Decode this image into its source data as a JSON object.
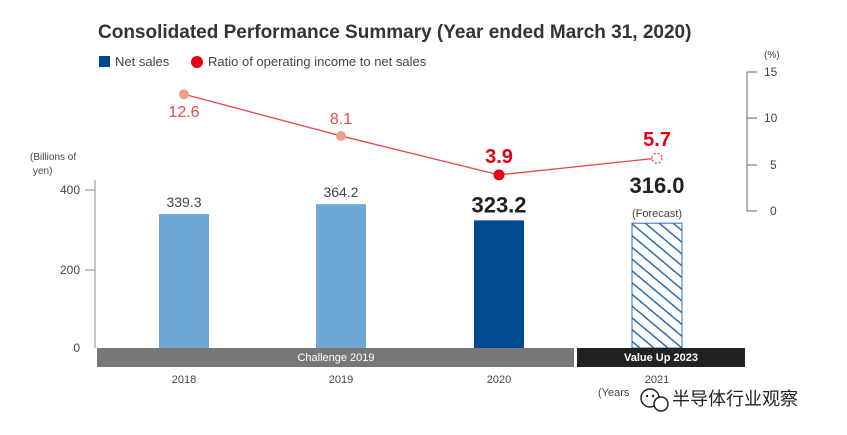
{
  "chart_data": {
    "type": "bar",
    "title": "Consolidated Performance Summary (Year ended March 31, 2020)",
    "legend": {
      "net_sales": "Net sales",
      "ratio": "Ratio of operating income to net sales"
    },
    "left_axis": {
      "unit_line1": "(Billions of",
      "unit_line2": "yen)",
      "ticks": [
        "400",
        "200",
        "0"
      ],
      "ylim": [
        0,
        400
      ]
    },
    "right_axis": {
      "unit": "(%)",
      "ticks": [
        "15",
        "10",
        "5",
        "0"
      ],
      "ylim": [
        0,
        15
      ]
    },
    "categories": [
      "2018",
      "2019",
      "2020",
      "2021"
    ],
    "series": [
      {
        "name": "Net sales",
        "type": "bar",
        "values": [
          339.3,
          364.2,
          323.2,
          316.0
        ],
        "labels": [
          "339.3",
          "364.2",
          "323.2",
          "316.0"
        ],
        "colors": [
          "#6fa8d4",
          "#6fa8d4",
          "#004a91",
          "hatched"
        ]
      },
      {
        "name": "Ratio of operating income to net sales",
        "type": "line",
        "values": [
          12.6,
          8.1,
          3.9,
          5.7
        ],
        "labels": [
          "12.6",
          "8.1",
          "3.9",
          "5.7"
        ]
      }
    ],
    "forecast_note": "(Forecast)",
    "periods": {
      "challenge": "Challenge 2019",
      "value_up": "Value Up 2023"
    },
    "x_note": "(Years",
    "colors": {
      "bar_light": "#6fa8d4",
      "bar_dark": "#004a91",
      "line": "#e8474c",
      "line_highlight": "#e60012",
      "point_faded": "#f0a08a",
      "period_challenge": "#777777",
      "period_value_up": "#222222",
      "legend_net_sales": "#004a91",
      "legend_ratio": "#e60012"
    }
  },
  "watermark": {
    "text": "半导体行业观察",
    "icon": "wechat-icon"
  }
}
